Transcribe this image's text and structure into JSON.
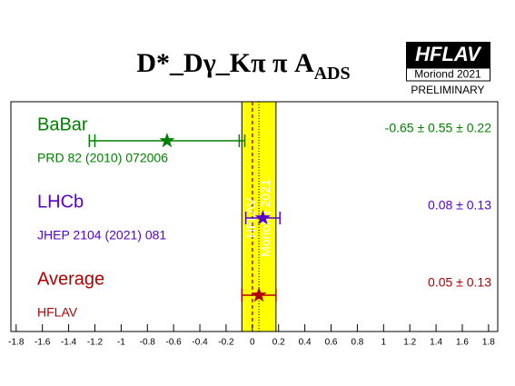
{
  "chart_data": {
    "type": "forest",
    "title": "D*_Dγ_Kπ π A",
    "title_subscript": "ADS",
    "logo": {
      "name": "HFLAV",
      "conference": "Moriond 2021",
      "status": "PRELIMINARY"
    },
    "band_labels": [
      "HFLAV",
      "Moriond 2021"
    ],
    "xlim": [
      -1.84,
      1.87
    ],
    "xticks": [
      -1.8,
      -1.6,
      -1.4,
      -1.2,
      -1,
      -0.8,
      -0.6,
      -0.4,
      -0.2,
      0,
      0.2,
      0.4,
      0.6,
      0.8,
      1,
      1.2,
      1.4,
      1.6,
      1.8
    ],
    "band_color": "#ffff00",
    "measurements": [
      {
        "name": "BaBar",
        "reference": "PRD 82 (2010) 072006",
        "color": "#008000",
        "value": -0.65,
        "errors": [
          0.55,
          0.22
        ],
        "value_label": "-0.65 ± 0.55 ± 0.22"
      },
      {
        "name": "LHCb",
        "reference": "JHEP 2104 (2021) 081",
        "color": "#5500cc",
        "value": 0.08,
        "errors": [
          0.13
        ],
        "value_label": "0.08 ± 0.13"
      },
      {
        "name": "Average",
        "reference": "HFLAV",
        "color": "#b00000",
        "value": 0.05,
        "errors": [
          0.13
        ],
        "value_label": "0.05 ± 0.13",
        "average": true
      }
    ]
  }
}
